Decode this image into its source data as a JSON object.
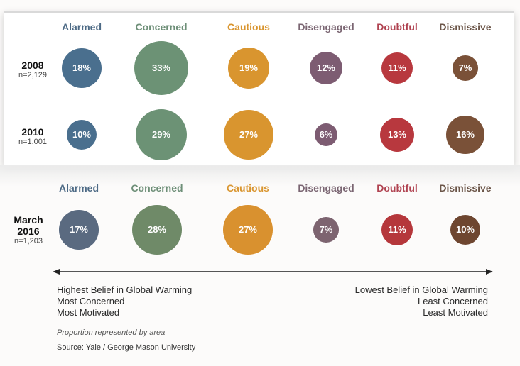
{
  "chart_data": {
    "type": "bubble",
    "encoding": "Proportion represented by area",
    "categories": [
      "Alarmed",
      "Concerned",
      "Cautious",
      "Disengaged",
      "Doubtful",
      "Dismissive"
    ],
    "category_colors": {
      "Alarmed": "#4a6f8e",
      "Concerned": "#6c9275",
      "Cautious": "#d9952f",
      "Disengaged": "#7d5c72",
      "Doubtful": "#b8383e",
      "Dismissive": "#7a5138"
    },
    "category_colors_2016": {
      "Alarmed": "#5a6a80",
      "Concerned": "#6f8a68",
      "Cautious": "#d9912f",
      "Disengaged": "#7d6470",
      "Doubtful": "#b5373b",
      "Dismissive": "#6e4630"
    },
    "header_colors": {
      "Alarmed": "#4d6a85",
      "Concerned": "#6e8f78",
      "Cautious": "#d9952f",
      "Disengaged": "#7a6572",
      "Doubtful": "#b04351",
      "Dismissive": "#6b5548"
    },
    "series": [
      {
        "name": "2008",
        "n": "n=2,129",
        "values": [
          18,
          33,
          19,
          12,
          11,
          7
        ]
      },
      {
        "name": "2010",
        "n": "n=1,001",
        "values": [
          10,
          29,
          27,
          6,
          13,
          16
        ]
      },
      {
        "name": "March 2016",
        "n": "n=1,203",
        "values": [
          17,
          28,
          27,
          7,
          11,
          10
        ]
      }
    ],
    "unit": "%"
  },
  "labels": {
    "row_2008": {
      "year": "2008",
      "n": "n=2,129"
    },
    "row_2010": {
      "year": "2010",
      "n": "n=1,001"
    },
    "row_2016": {
      "year_line1": "March",
      "year_line2": "2016",
      "n": "n=1,203"
    }
  },
  "axis": {
    "left_caption": [
      "Highest Belief in Global Warming",
      "Most Concerned",
      "Most Motivated"
    ],
    "right_caption": [
      "Lowest Belief in Global Warming",
      "Least Concerned",
      "Least Motivated"
    ]
  },
  "footer": {
    "note": "Proportion represented by area",
    "source": "Source: Yale / George Mason University"
  }
}
